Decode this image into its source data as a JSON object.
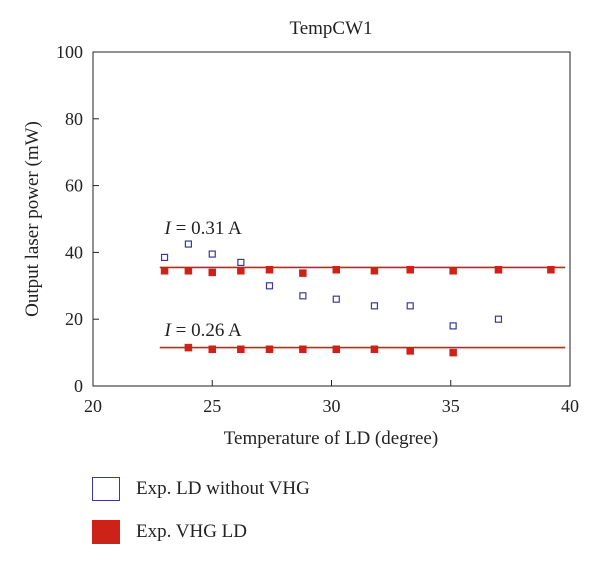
{
  "chart_data": {
    "type": "scatter",
    "title": "TempCW1",
    "xlabel": "Temperature of LD (degree)",
    "ylabel": "Output laser power (mW)",
    "xlim": [
      20,
      40
    ],
    "ylim": [
      0,
      100
    ],
    "xticks": [
      20,
      25,
      30,
      35,
      40
    ],
    "yticks": [
      0,
      20,
      40,
      60,
      80,
      100
    ],
    "grid": false,
    "legend_position": "bottom",
    "series": [
      {
        "name": "Exp. LD without VHG",
        "marker": "open-square",
        "color": "#3a3a9a",
        "x": [
          23.0,
          24.0,
          25.0,
          26.2,
          27.4,
          28.8,
          30.2,
          31.8,
          33.3,
          35.1,
          37.0
        ],
        "y": [
          38.5,
          42.5,
          39.5,
          37.0,
          30.0,
          27.0,
          26.0,
          24.0,
          24.0,
          18.0,
          20.0
        ]
      },
      {
        "name": "Exp. VHG LD",
        "marker": "filled-square",
        "color": "#cc2218",
        "x": [
          23.0,
          24.0,
          25.0,
          26.2,
          27.4,
          28.8,
          30.2,
          31.8,
          33.3,
          35.1,
          37.0,
          39.2,
          24.0,
          25.0,
          26.2,
          27.4,
          28.8,
          30.2,
          31.8,
          33.3,
          35.1
        ],
        "y": [
          34.5,
          34.5,
          34.0,
          34.5,
          34.8,
          33.8,
          34.8,
          34.5,
          34.8,
          34.5,
          34.8,
          34.8,
          11.5,
          11.0,
          11.0,
          11.0,
          11.0,
          11.0,
          11.0,
          10.5,
          10.0
        ]
      }
    ],
    "reference_lines": [
      {
        "y": 35.5,
        "x_range": [
          22.8,
          39.8
        ],
        "color": "#cc2218"
      },
      {
        "y": 11.5,
        "x_range": [
          22.8,
          39.8
        ],
        "color": "#cc2218"
      }
    ],
    "annotations": [
      {
        "var": "I",
        "rest": " = 0.31 A",
        "x": 23.0,
        "y": 45.5
      },
      {
        "var": "I",
        "rest": " = 0.26 A",
        "x": 23.0,
        "y": 15.0
      }
    ]
  }
}
